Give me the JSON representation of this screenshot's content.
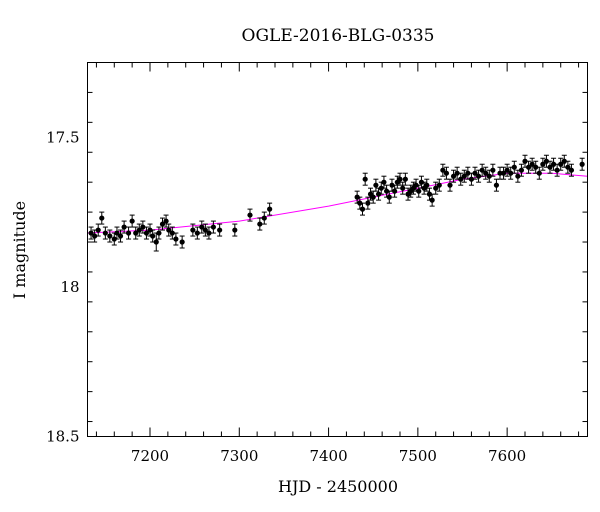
{
  "chart_data": {
    "type": "scatter",
    "title": "OGLE-2016-BLG-0335",
    "xlabel": "HJD - 2450000",
    "ylabel": "I magnitude",
    "xlim": [
      7130,
      7690
    ],
    "ylim": [
      18.5,
      17.25
    ],
    "y_inverted": true,
    "x_major_ticks": [
      7200,
      7300,
      7400,
      7500,
      7600
    ],
    "x_minor_step": 20,
    "y_major_ticks": [
      17.5,
      18,
      18.5
    ],
    "y_minor_step": 0.1,
    "grid": false,
    "model_color": "#ff00ff",
    "point_color": "#000000",
    "model": {
      "x": [
        7130,
        7200,
        7300,
        7400,
        7450,
        7500,
        7550,
        7600,
        7650,
        7690
      ],
      "y": [
        17.82,
        17.81,
        17.78,
        17.73,
        17.7,
        17.67,
        17.64,
        17.62,
        17.62,
        17.63
      ]
    },
    "series": [
      {
        "x": [
          7134,
          7138,
          7142,
          7146,
          7150,
          7155,
          7160,
          7163,
          7167,
          7171,
          7176,
          7180,
          7184,
          7188,
          7192,
          7196,
          7200,
          7203,
          7207,
          7210,
          7214,
          7218,
          7221,
          7225,
          7229,
          7236,
          7248,
          7253,
          7258,
          7262,
          7266,
          7271,
          7278,
          7295,
          7312,
          7323,
          7328,
          7334
        ],
        "y": [
          17.82,
          17.83,
          17.81,
          17.77,
          17.82,
          17.83,
          17.84,
          17.82,
          17.83,
          17.8,
          17.82,
          17.78,
          17.82,
          17.81,
          17.8,
          17.82,
          17.81,
          17.83,
          17.85,
          17.82,
          17.79,
          17.78,
          17.81,
          17.82,
          17.84,
          17.85,
          17.81,
          17.82,
          17.8,
          17.81,
          17.82,
          17.8,
          17.81,
          17.81,
          17.76,
          17.79,
          17.77,
          17.74
        ],
        "err": [
          0.02,
          0.02,
          0.02,
          0.02,
          0.02,
          0.02,
          0.02,
          0.02,
          0.02,
          0.02,
          0.02,
          0.02,
          0.02,
          0.02,
          0.02,
          0.02,
          0.02,
          0.02,
          0.03,
          0.02,
          0.02,
          0.02,
          0.02,
          0.02,
          0.02,
          0.02,
          0.02,
          0.02,
          0.02,
          0.02,
          0.02,
          0.02,
          0.02,
          0.02,
          0.02,
          0.02,
          0.02,
          0.02
        ]
      },
      {
        "x": [
          7432,
          7435,
          7438,
          7441,
          7444,
          7447,
          7450,
          7453,
          7456,
          7459,
          7462,
          7465,
          7468,
          7471,
          7474,
          7477,
          7480,
          7483,
          7486,
          7489,
          7492,
          7495,
          7498,
          7501,
          7504,
          7507,
          7510,
          7513,
          7516,
          7520,
          7524,
          7528,
          7532,
          7536,
          7540,
          7544,
          7548,
          7552,
          7556,
          7560,
          7564,
          7568,
          7572,
          7576,
          7580,
          7584,
          7588,
          7592,
          7596,
          7600,
          7604,
          7608,
          7612,
          7616,
          7620,
          7624,
          7628,
          7632,
          7636,
          7640,
          7644,
          7648,
          7652,
          7656,
          7660,
          7664,
          7668,
          7672,
          7684
        ],
        "y": [
          17.7,
          17.72,
          17.74,
          17.64,
          17.72,
          17.69,
          17.7,
          17.66,
          17.69,
          17.67,
          17.65,
          17.68,
          17.7,
          17.66,
          17.68,
          17.65,
          17.64,
          17.67,
          17.64,
          17.69,
          17.68,
          17.67,
          17.66,
          17.68,
          17.65,
          17.67,
          17.66,
          17.69,
          17.71,
          17.67,
          17.66,
          17.61,
          17.62,
          17.66,
          17.63,
          17.62,
          17.64,
          17.63,
          17.62,
          17.64,
          17.62,
          17.63,
          17.61,
          17.62,
          17.63,
          17.61,
          17.66,
          17.62,
          17.62,
          17.61,
          17.62,
          17.6,
          17.63,
          17.61,
          17.58,
          17.6,
          17.59,
          17.6,
          17.62,
          17.59,
          17.58,
          17.6,
          17.59,
          17.61,
          17.59,
          17.58,
          17.6,
          17.61,
          17.59
        ],
        "err": [
          0.02,
          0.02,
          0.02,
          0.02,
          0.02,
          0.02,
          0.02,
          0.02,
          0.02,
          0.02,
          0.02,
          0.02,
          0.02,
          0.02,
          0.02,
          0.02,
          0.02,
          0.02,
          0.02,
          0.02,
          0.02,
          0.02,
          0.02,
          0.02,
          0.02,
          0.02,
          0.02,
          0.02,
          0.02,
          0.02,
          0.02,
          0.02,
          0.02,
          0.02,
          0.02,
          0.02,
          0.02,
          0.02,
          0.02,
          0.02,
          0.02,
          0.02,
          0.02,
          0.02,
          0.02,
          0.02,
          0.02,
          0.02,
          0.02,
          0.02,
          0.02,
          0.02,
          0.02,
          0.02,
          0.02,
          0.02,
          0.02,
          0.02,
          0.02,
          0.02,
          0.02,
          0.02,
          0.02,
          0.02,
          0.02,
          0.02,
          0.02,
          0.02,
          0.02
        ]
      }
    ]
  }
}
